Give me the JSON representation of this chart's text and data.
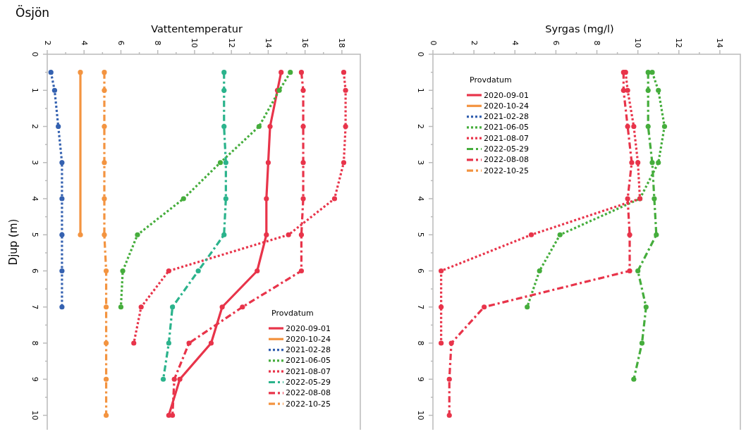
{
  "chart_data": [
    {
      "type": "line",
      "title": "Ösjön",
      "subtitle": "Vattentemperatur",
      "ylabel": "Djup (m)",
      "legend_title": "Provdatum",
      "legend": "bottom right",
      "marker": "circle",
      "grid": false,
      "xlim": [
        2,
        19
      ],
      "xticks": [
        2,
        {
          "value": 3,
          "label": null
        },
        4,
        {
          "value": 5,
          "label": null
        },
        6,
        {
          "value": 7,
          "label": null
        },
        8,
        {
          "value": 9,
          "label": null
        },
        10,
        {
          "value": 11,
          "label": null
        },
        12,
        {
          "value": 13,
          "label": null
        },
        14,
        {
          "value": 15,
          "label": null
        },
        16,
        {
          "value": 17,
          "label": null
        },
        18
      ],
      "ylim": [
        10.4,
        0
      ],
      "yticks": [
        0,
        {
          "value": 0.5,
          "label": null
        },
        1,
        {
          "value": 1.5,
          "label": null
        },
        2,
        {
          "value": 2.5,
          "label": null
        },
        3,
        {
          "value": 3.5,
          "label": null
        },
        4,
        {
          "value": 4.5,
          "label": null
        },
        5,
        {
          "value": 5.5,
          "label": null
        },
        6,
        {
          "value": 6.5,
          "label": null
        },
        7,
        {
          "value": 7.5,
          "label": null
        },
        8,
        {
          "value": 8.5,
          "label": null
        },
        9,
        {
          "value": 9.5,
          "label": null
        },
        10
      ],
      "series": [
        {
          "name": "2020-09-01",
          "color": "#e8344a",
          "line_style": "solid",
          "x": [
            14.7,
            14.5,
            14.1,
            14.0,
            13.9,
            13.9,
            13.4,
            11.5,
            10.9,
            9.2,
            8.6
          ],
          "values": [
            0.5,
            1,
            2,
            3,
            4,
            5,
            6,
            7,
            8,
            9,
            10
          ]
        },
        {
          "name": "2020-10-24",
          "color": "#f39440",
          "line_style": "solid",
          "x": [
            3.8,
            3.8
          ],
          "values": [
            0.5,
            5
          ]
        },
        {
          "name": "2021-02-28",
          "color": "#3461b0",
          "line_style": "dotted",
          "x": [
            2.2,
            2.4,
            2.6,
            2.8,
            2.8,
            2.8,
            2.8,
            2.8
          ],
          "values": [
            0.5,
            1,
            2,
            3,
            4,
            5,
            6,
            7
          ]
        },
        {
          "name": "2021-06-05",
          "color": "#45ad3c",
          "line_style": "dotted",
          "x": [
            15.2,
            14.6,
            13.5,
            11.4,
            9.4,
            6.9,
            6.1,
            6.0
          ],
          "values": [
            0.5,
            1,
            2,
            3,
            4,
            5,
            6,
            7
          ]
        },
        {
          "name": "2021-08-07",
          "color": "#e8344a",
          "line_style": "dotted",
          "x": [
            18.1,
            18.2,
            18.2,
            18.1,
            17.6,
            15.1,
            8.6,
            7.1,
            6.7
          ],
          "values": [
            0.5,
            1,
            2,
            3,
            4,
            5,
            6,
            7,
            8
          ]
        },
        {
          "name": "2022-05-29",
          "color": "#2bb38c",
          "line_style": "dashdot",
          "x": [
            11.6,
            11.6,
            11.6,
            11.7,
            11.7,
            11.6,
            10.2,
            8.8,
            8.6,
            8.3
          ],
          "values": [
            0.5,
            1,
            2,
            3,
            4,
            5,
            6,
            7,
            8,
            9
          ]
        },
        {
          "name": "2022-08-08",
          "color": "#e8344a",
          "line_style": "dashdot",
          "x": [
            15.8,
            15.9,
            15.9,
            15.9,
            15.9,
            15.8,
            15.8,
            12.6,
            9.7,
            8.9,
            8.8
          ],
          "values": [
            0.5,
            1,
            2,
            3,
            4,
            5,
            6,
            7,
            8,
            9,
            10
          ]
        },
        {
          "name": "2022-10-25",
          "color": "#f39440",
          "line_style": "dashdot",
          "x": [
            5.1,
            5.1,
            5.1,
            5.1,
            5.1,
            5.1,
            5.2,
            5.2,
            5.2,
            5.2,
            5.2
          ],
          "values": [
            0.5,
            1,
            2,
            3,
            4,
            5,
            6,
            7,
            8,
            9,
            10
          ]
        }
      ]
    },
    {
      "type": "line",
      "subtitle": "Syrgas (mg/l)",
      "legend_title": "Provdatum",
      "legend": "top left",
      "marker": "circle",
      "grid": false,
      "xlim": [
        0,
        15
      ],
      "xticks": [
        0,
        {
          "value": 1,
          "label": null
        },
        2,
        {
          "value": 3,
          "label": null
        },
        4,
        {
          "value": 5,
          "label": null
        },
        6,
        {
          "value": 7,
          "label": null
        },
        8,
        {
          "value": 9,
          "label": null
        },
        10,
        {
          "value": 11,
          "label": null
        },
        12,
        {
          "value": 13,
          "label": null
        },
        14
      ],
      "ylim": [
        10.4,
        0
      ],
      "yticks": [
        0,
        {
          "value": 0.5,
          "label": null
        },
        1,
        {
          "value": 1.5,
          "label": null
        },
        2,
        {
          "value": 2.5,
          "label": null
        },
        3,
        {
          "value": 3.5,
          "label": null
        },
        4,
        {
          "value": 4.5,
          "label": null
        },
        5,
        {
          "value": 5.5,
          "label": null
        },
        6,
        {
          "value": 6.5,
          "label": null
        },
        7,
        {
          "value": 7.5,
          "label": null
        },
        8,
        {
          "value": 8.5,
          "label": null
        },
        9,
        {
          "value": 9.5,
          "label": null
        },
        10
      ],
      "series": [
        {
          "name": "2020-09-01",
          "color": "#e8344a",
          "line_style": "solid"
        },
        {
          "name": "2020-10-24",
          "color": "#f39440",
          "line_style": "solid"
        },
        {
          "name": "2021-02-28",
          "color": "#3461b0",
          "line_style": "dotted"
        },
        {
          "name": "2021-06-05",
          "color": "#45ad3c",
          "line_style": "dotted",
          "x": [
            10.7,
            11.0,
            11.3,
            11.0,
            10.1,
            6.2,
            5.2,
            4.6
          ],
          "values": [
            0.5,
            1,
            2,
            3,
            4,
            5,
            6,
            7
          ]
        },
        {
          "name": "2021-08-07",
          "color": "#e8344a",
          "line_style": "dotted",
          "x": [
            9.4,
            9.5,
            9.8,
            10.0,
            10.1,
            4.8,
            0.4,
            0.4,
            0.4
          ],
          "values": [
            0.5,
            1,
            2,
            3,
            4,
            5,
            6,
            7,
            8
          ]
        },
        {
          "name": "2022-05-29",
          "color": "#45ad3c",
          "line_style": "dashdot",
          "x": [
            10.5,
            10.5,
            10.5,
            10.7,
            10.8,
            10.9,
            10.0,
            10.4,
            10.2,
            9.8
          ],
          "values": [
            0.5,
            1,
            2,
            3,
            4,
            5,
            6,
            7,
            8,
            9
          ]
        },
        {
          "name": "2022-08-08",
          "color": "#e8344a",
          "line_style": "dashdot",
          "x": [
            9.3,
            9.3,
            9.5,
            9.7,
            9.5,
            9.6,
            9.6,
            2.5,
            0.9,
            0.8,
            0.8
          ],
          "values": [
            0.5,
            1,
            2,
            3,
            4,
            5,
            6,
            7,
            8,
            9,
            10
          ]
        },
        {
          "name": "2022-10-25",
          "color": "#f39440",
          "line_style": "dashdot"
        }
      ]
    }
  ]
}
